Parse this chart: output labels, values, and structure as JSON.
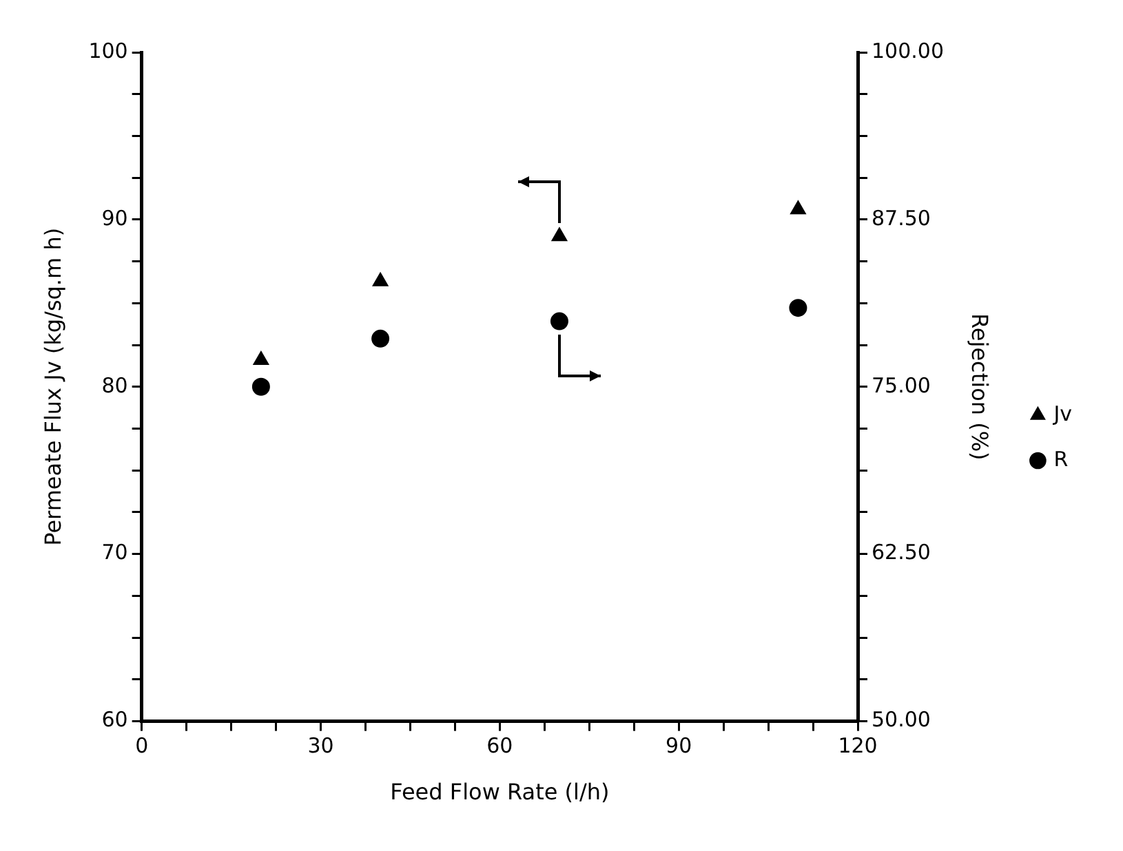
{
  "chart_data": {
    "type": "scatter",
    "xlabel": "Feed Flow Rate (l/h)",
    "ylabel": "Permeate Flux Jv (kg/sq.m h)",
    "y2label": "Rejection (%)",
    "x": [
      20,
      40,
      70,
      110
    ],
    "series": [
      {
        "name": "Jv",
        "color": "#000000",
        "marker": "triangle",
        "values": [
          81.6,
          86.3,
          89.0,
          90.6
        ]
      },
      {
        "name": "R",
        "color": "#000000",
        "marker": "circle",
        "axis": "y2",
        "values": [
          75.0,
          78.6,
          79.9,
          80.9
        ]
      }
    ],
    "xlim": [
      0,
      120
    ],
    "xticks": [
      0,
      {
        "value": 7.5,
        "label": null
      },
      {
        "value": 15,
        "label": null
      },
      {
        "value": 22.5,
        "label": null
      },
      30,
      {
        "value": 37.5,
        "label": null
      },
      {
        "value": 45,
        "label": null
      },
      {
        "value": 52.5,
        "label": null
      },
      60,
      {
        "value": 67.5,
        "label": null
      },
      {
        "value": 75,
        "label": null
      },
      {
        "value": 82.5,
        "label": null
      },
      90,
      {
        "value": 97.5,
        "label": null
      },
      {
        "value": 105,
        "label": null
      },
      {
        "value": 112.5,
        "label": null
      },
      120
    ],
    "ylim": [
      60,
      100
    ],
    "yticks": [
      60,
      {
        "value": 62.5,
        "label": null
      },
      {
        "value": 65,
        "label": null
      },
      {
        "value": 67.5,
        "label": null
      },
      70,
      {
        "value": 72.5,
        "label": null
      },
      {
        "value": 75,
        "label": null
      },
      {
        "value": 77.5,
        "label": null
      },
      80,
      {
        "value": 82.5,
        "label": null
      },
      {
        "value": 85,
        "label": null
      },
      {
        "value": 87.5,
        "label": null
      },
      90,
      {
        "value": 92.5,
        "label": null
      },
      {
        "value": 95,
        "label": null
      },
      {
        "value": 97.5,
        "label": null
      },
      100
    ],
    "y2lim": [
      50,
      100
    ],
    "y2ticks": [
      {
        "value": 50,
        "label": "50.00"
      },
      {
        "value": 53.125,
        "label": null
      },
      {
        "value": 56.25,
        "label": null
      },
      {
        "value": 59.375,
        "label": null
      },
      {
        "value": 62.5,
        "label": "62.50"
      },
      {
        "value": 65.625,
        "label": null
      },
      {
        "value": 68.75,
        "label": null
      },
      {
        "value": 71.875,
        "label": null
      },
      {
        "value": 75,
        "label": "75.00"
      },
      {
        "value": 78.125,
        "label": null
      },
      {
        "value": 81.25,
        "label": null
      },
      {
        "value": 84.375,
        "label": null
      },
      {
        "value": 87.5,
        "label": "87.50"
      },
      {
        "value": 90.625,
        "label": null
      },
      {
        "value": 93.75,
        "label": null
      },
      {
        "value": 96.875,
        "label": null
      },
      {
        "value": 100,
        "label": "100.00"
      }
    ],
    "grid": false,
    "legend": "right"
  }
}
